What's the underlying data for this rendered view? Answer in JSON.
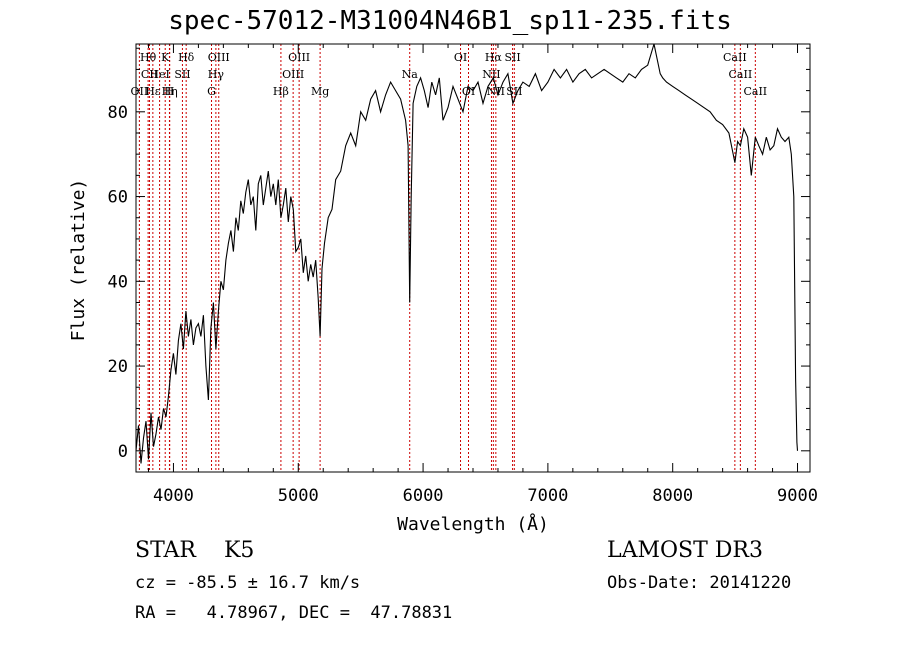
{
  "title": "spec-57012-M31004N46B1_sp11-235.fits",
  "chart_data": {
    "type": "line",
    "title": "spec-57012-M31004N46B1_sp11-235.fits",
    "xlabel": "Wavelength (Å)",
    "ylabel": "Flux (relative)",
    "xlim": [
      3700,
      9100
    ],
    "ylim": [
      -5,
      96
    ],
    "xticks": [
      4000,
      5000,
      6000,
      7000,
      8000,
      9000
    ],
    "yticks": [
      0,
      20,
      40,
      60,
      80
    ],
    "grid": false,
    "series": [
      {
        "name": "spectrum",
        "x": [
          3700,
          3720,
          3740,
          3760,
          3780,
          3800,
          3820,
          3840,
          3860,
          3880,
          3900,
          3920,
          3940,
          3960,
          3980,
          4000,
          4020,
          4040,
          4060,
          4080,
          4100,
          4120,
          4140,
          4160,
          4180,
          4200,
          4220,
          4240,
          4260,
          4280,
          4300,
          4320,
          4340,
          4360,
          4380,
          4400,
          4420,
          4440,
          4460,
          4480,
          4500,
          4520,
          4540,
          4560,
          4580,
          4600,
          4620,
          4640,
          4660,
          4680,
          4700,
          4720,
          4740,
          4760,
          4780,
          4800,
          4820,
          4840,
          4861,
          4880,
          4900,
          4920,
          4940,
          4960,
          4980,
          5000,
          5020,
          5040,
          5060,
          5080,
          5100,
          5120,
          5140,
          5160,
          5175,
          5190,
          5210,
          5240,
          5270,
          5300,
          5340,
          5380,
          5420,
          5460,
          5500,
          5540,
          5580,
          5620,
          5660,
          5700,
          5740,
          5780,
          5820,
          5860,
          5880,
          5893,
          5905,
          5920,
          5950,
          5980,
          6010,
          6040,
          6070,
          6100,
          6130,
          6160,
          6200,
          6240,
          6280,
          6320,
          6360,
          6400,
          6440,
          6480,
          6520,
          6563,
          6600,
          6640,
          6680,
          6720,
          6760,
          6800,
          6850,
          6900,
          6950,
          7000,
          7050,
          7100,
          7150,
          7200,
          7250,
          7300,
          7350,
          7400,
          7450,
          7500,
          7550,
          7600,
          7650,
          7700,
          7750,
          7800,
          7850,
          7900,
          7920,
          7950,
          8000,
          8050,
          8100,
          8150,
          8200,
          8250,
          8300,
          8350,
          8400,
          8450,
          8498,
          8520,
          8542,
          8570,
          8600,
          8630,
          8662,
          8690,
          8720,
          8750,
          8780,
          8810,
          8840,
          8870,
          8900,
          8930,
          8950,
          8970,
          8985,
          8995,
          9000
        ],
        "y": [
          0,
          6,
          -3,
          3,
          7,
          -2,
          9,
          1,
          4,
          8,
          5,
          10,
          8,
          13,
          19,
          23,
          18,
          26,
          30,
          24,
          33,
          27,
          31,
          25,
          29,
          30,
          27,
          32,
          20,
          12,
          29,
          35,
          24,
          33,
          40,
          38,
          45,
          49,
          52,
          47,
          55,
          52,
          59,
          56,
          61,
          64,
          58,
          60,
          52,
          63,
          65,
          58,
          62,
          66,
          60,
          63,
          58,
          64,
          55,
          58,
          62,
          54,
          60,
          57,
          47,
          48,
          50,
          42,
          46,
          40,
          44,
          41,
          45,
          36,
          27,
          43,
          49,
          55,
          57,
          64,
          66,
          72,
          75,
          72,
          80,
          78,
          83,
          85,
          80,
          84,
          87,
          85,
          83,
          78,
          72,
          35,
          60,
          82,
          86,
          88,
          85,
          81,
          87,
          84,
          88,
          78,
          81,
          86,
          83,
          80,
          86,
          85,
          87,
          82,
          86,
          88,
          84,
          87,
          89,
          82,
          85,
          87,
          86,
          89,
          85,
          87,
          90,
          88,
          90,
          87,
          89,
          90,
          88,
          89,
          90,
          89,
          88,
          87,
          89,
          88,
          90,
          91,
          96,
          89,
          88,
          87,
          86,
          85,
          84,
          83,
          82,
          81,
          80,
          78,
          77,
          75,
          68,
          73,
          72,
          76,
          74,
          65,
          74,
          72,
          70,
          74,
          71,
          72,
          76,
          74,
          73,
          74,
          70,
          60,
          17,
          2,
          0
        ]
      }
    ],
    "line_markers": [
      {
        "label": "Hθ",
        "wave": 3797,
        "row": 1
      },
      {
        "label": "CII",
        "wave": 3808,
        "row": 2
      },
      {
        "label": "OII",
        "wave": 3727,
        "row": 3
      },
      {
        "label": "Hε",
        "wave": 3835,
        "row": 3
      },
      {
        "label": "K",
        "wave": 3934,
        "row": 1
      },
      {
        "label": "HeI",
        "wave": 3889,
        "row": 2
      },
      {
        "label": "Hη",
        "wave": 3970,
        "row": 3
      },
      {
        "label": "H",
        "wave": 3968,
        "row": 3
      },
      {
        "label": "SII",
        "wave": 4072,
        "row": 2
      },
      {
        "label": "Hδ",
        "wave": 4102,
        "row": 1
      },
      {
        "label": "OIII",
        "wave": 4363,
        "row": 1
      },
      {
        "label": "Hγ",
        "wave": 4340,
        "row": 2
      },
      {
        "label": "G",
        "wave": 4305,
        "row": 3
      },
      {
        "label": "Hβ",
        "wave": 4861,
        "row": 3
      },
      {
        "label": "OIII",
        "wave": 4959,
        "row": 2
      },
      {
        "label": "OIII",
        "wave": 5007,
        "row": 1
      },
      {
        "label": "Mg",
        "wave": 5175,
        "row": 3
      },
      {
        "label": "Na",
        "wave": 5893,
        "row": 2
      },
      {
        "label": "OI",
        "wave": 6300,
        "row": 1
      },
      {
        "label": "OI",
        "wave": 6364,
        "row": 3
      },
      {
        "label": "Hα",
        "wave": 6563,
        "row": 1
      },
      {
        "label": "NII",
        "wave": 6548,
        "row": 2
      },
      {
        "label": "NII",
        "wave": 6583,
        "row": 3
      },
      {
        "label": "SII",
        "wave": 6717,
        "row": 1
      },
      {
        "label": "SII",
        "wave": 6731,
        "row": 3
      },
      {
        "label": "CaII",
        "wave": 8498,
        "row": 1
      },
      {
        "label": "CaII",
        "wave": 8542,
        "row": 2
      },
      {
        "label": "CaII",
        "wave": 8662,
        "row": 3
      }
    ]
  },
  "info": {
    "obj_class": "STAR    K5",
    "survey": "LAMOST DR3",
    "cz": "cz = -85.5 ± 16.7 km/s",
    "obs_date": "Obs-Date: 20141220",
    "radec": "RA =   4.78967, DEC =  47.78831"
  },
  "colors": {
    "line": "#000000",
    "marker": "#cc0000",
    "background": "#ffffff"
  }
}
